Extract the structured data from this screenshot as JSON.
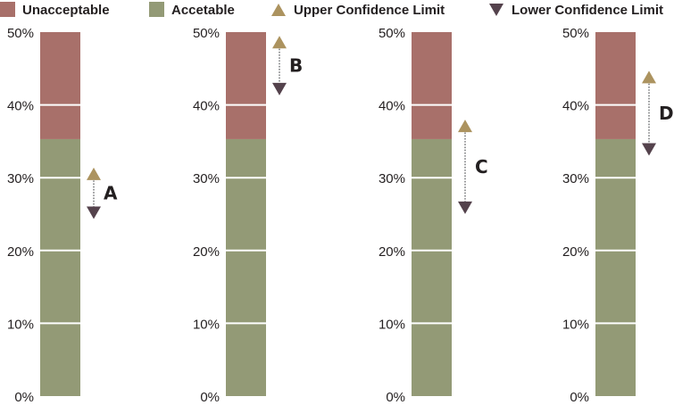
{
  "legend": [
    {
      "key": "unacceptable",
      "label": "Unacceptable",
      "marker": "square",
      "color": "#a8706a"
    },
    {
      "key": "acceptable",
      "label": "Accetable",
      "marker": "square",
      "color": "#939a76"
    },
    {
      "key": "upper",
      "label": "Upper Confidence Limit",
      "marker": "triangle-up",
      "color": "#ac935f"
    },
    {
      "key": "lower",
      "label": "Lower Confidence Limit",
      "marker": "triangle-down",
      "color": "#54424c"
    }
  ],
  "chart_data": {
    "type": "bar",
    "title": "",
    "xlabel": "",
    "ylabel": "",
    "ylim": [
      0,
      50
    ],
    "y_ticks": [
      0,
      10,
      20,
      30,
      40,
      50
    ],
    "tick_suffix": "%",
    "threshold": 35.3,
    "panels": [
      {
        "label": "A",
        "upper": 30.4,
        "lower": 25.3
      },
      {
        "label": "B",
        "upper": 48.5,
        "lower": 42.3
      },
      {
        "label": "C",
        "upper": 37.0,
        "lower": 26.0
      },
      {
        "label": "D",
        "upper": 43.7,
        "lower": 34.0
      }
    ],
    "series": [
      {
        "name": "Accetable",
        "range": [
          0,
          35.3
        ],
        "color": "#939a76"
      },
      {
        "name": "Unacceptable",
        "range": [
          35.3,
          50
        ],
        "color": "#a8706a"
      }
    ],
    "grid": "white lines at each tick across bars",
    "legend_position": "top"
  }
}
